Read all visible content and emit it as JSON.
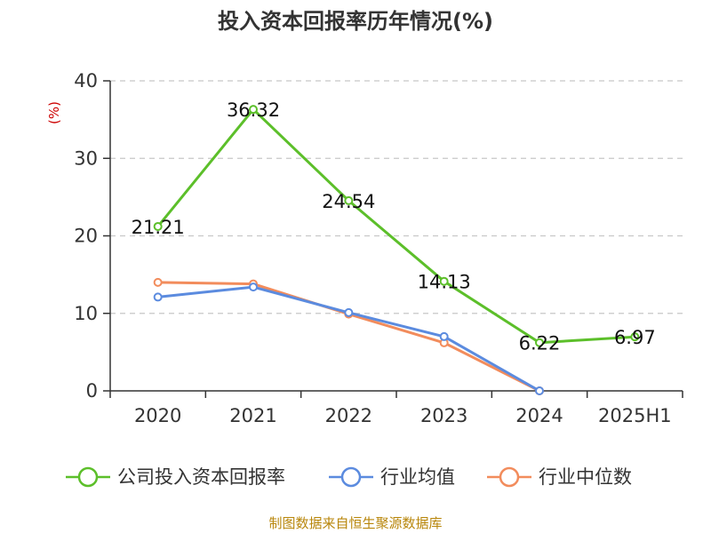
{
  "chart_data": {
    "type": "line",
    "title": "投入资本回报率历年情况(%)",
    "ylabel": "(%)",
    "categories": [
      "2020",
      "2021",
      "2022",
      "2023",
      "2024",
      "2025H1"
    ],
    "ylim": [
      0,
      40
    ],
    "yticks": [
      0,
      10,
      20,
      30,
      40
    ],
    "grid": true,
    "legend_position": "bottom",
    "series": [
      {
        "name": "公司投入资本回报率",
        "color": "#5cbf2a",
        "values": [
          21.21,
          36.32,
          24.54,
          14.13,
          6.22,
          6.97
        ],
        "labels": [
          "21.21",
          "36.32",
          "24.54",
          "14.13",
          "6.22",
          "6.97"
        ]
      },
      {
        "name": "行业均值",
        "color": "#5b8bdf",
        "values": [
          12.1,
          13.4,
          10.1,
          7.0,
          0.0,
          null
        ],
        "labels": null
      },
      {
        "name": "行业中位数",
        "color": "#f28c5c",
        "values": [
          14.0,
          13.8,
          9.9,
          6.2,
          0.0,
          null
        ],
        "labels": null
      }
    ]
  },
  "source": "制图数据来自恒生聚源数据库"
}
